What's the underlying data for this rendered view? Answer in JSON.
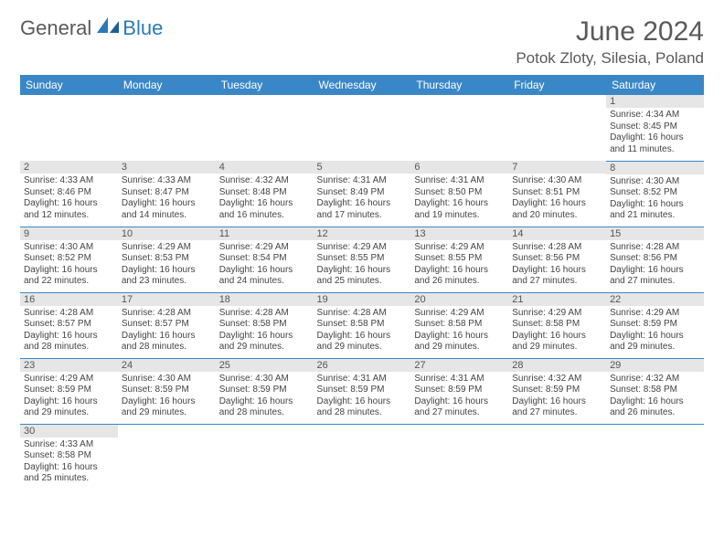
{
  "brand": {
    "part1": "General",
    "part2": "Blue"
  },
  "title": "June 2024",
  "location": "Potok Zloty, Silesia, Poland",
  "colors": {
    "header_bg": "#3a87c8",
    "header_text": "#ffffff",
    "day_bar_bg": "#e6e6e6",
    "border": "#3a87c8",
    "body_text": "#444444",
    "title_text": "#5a5a5a",
    "brand_accent": "#2a7ab9"
  },
  "weekdays": [
    "Sunday",
    "Monday",
    "Tuesday",
    "Wednesday",
    "Thursday",
    "Friday",
    "Saturday"
  ],
  "weeks": [
    [
      null,
      null,
      null,
      null,
      null,
      null,
      {
        "n": "1",
        "sr": "Sunrise: 4:34 AM",
        "ss": "Sunset: 8:45 PM",
        "d1": "Daylight: 16 hours",
        "d2": "and 11 minutes."
      }
    ],
    [
      {
        "n": "2",
        "sr": "Sunrise: 4:33 AM",
        "ss": "Sunset: 8:46 PM",
        "d1": "Daylight: 16 hours",
        "d2": "and 12 minutes."
      },
      {
        "n": "3",
        "sr": "Sunrise: 4:33 AM",
        "ss": "Sunset: 8:47 PM",
        "d1": "Daylight: 16 hours",
        "d2": "and 14 minutes."
      },
      {
        "n": "4",
        "sr": "Sunrise: 4:32 AM",
        "ss": "Sunset: 8:48 PM",
        "d1": "Daylight: 16 hours",
        "d2": "and 16 minutes."
      },
      {
        "n": "5",
        "sr": "Sunrise: 4:31 AM",
        "ss": "Sunset: 8:49 PM",
        "d1": "Daylight: 16 hours",
        "d2": "and 17 minutes."
      },
      {
        "n": "6",
        "sr": "Sunrise: 4:31 AM",
        "ss": "Sunset: 8:50 PM",
        "d1": "Daylight: 16 hours",
        "d2": "and 19 minutes."
      },
      {
        "n": "7",
        "sr": "Sunrise: 4:30 AM",
        "ss": "Sunset: 8:51 PM",
        "d1": "Daylight: 16 hours",
        "d2": "and 20 minutes."
      },
      {
        "n": "8",
        "sr": "Sunrise: 4:30 AM",
        "ss": "Sunset: 8:52 PM",
        "d1": "Daylight: 16 hours",
        "d2": "and 21 minutes."
      }
    ],
    [
      {
        "n": "9",
        "sr": "Sunrise: 4:30 AM",
        "ss": "Sunset: 8:52 PM",
        "d1": "Daylight: 16 hours",
        "d2": "and 22 minutes."
      },
      {
        "n": "10",
        "sr": "Sunrise: 4:29 AM",
        "ss": "Sunset: 8:53 PM",
        "d1": "Daylight: 16 hours",
        "d2": "and 23 minutes."
      },
      {
        "n": "11",
        "sr": "Sunrise: 4:29 AM",
        "ss": "Sunset: 8:54 PM",
        "d1": "Daylight: 16 hours",
        "d2": "and 24 minutes."
      },
      {
        "n": "12",
        "sr": "Sunrise: 4:29 AM",
        "ss": "Sunset: 8:55 PM",
        "d1": "Daylight: 16 hours",
        "d2": "and 25 minutes."
      },
      {
        "n": "13",
        "sr": "Sunrise: 4:29 AM",
        "ss": "Sunset: 8:55 PM",
        "d1": "Daylight: 16 hours",
        "d2": "and 26 minutes."
      },
      {
        "n": "14",
        "sr": "Sunrise: 4:28 AM",
        "ss": "Sunset: 8:56 PM",
        "d1": "Daylight: 16 hours",
        "d2": "and 27 minutes."
      },
      {
        "n": "15",
        "sr": "Sunrise: 4:28 AM",
        "ss": "Sunset: 8:56 PM",
        "d1": "Daylight: 16 hours",
        "d2": "and 27 minutes."
      }
    ],
    [
      {
        "n": "16",
        "sr": "Sunrise: 4:28 AM",
        "ss": "Sunset: 8:57 PM",
        "d1": "Daylight: 16 hours",
        "d2": "and 28 minutes."
      },
      {
        "n": "17",
        "sr": "Sunrise: 4:28 AM",
        "ss": "Sunset: 8:57 PM",
        "d1": "Daylight: 16 hours",
        "d2": "and 28 minutes."
      },
      {
        "n": "18",
        "sr": "Sunrise: 4:28 AM",
        "ss": "Sunset: 8:58 PM",
        "d1": "Daylight: 16 hours",
        "d2": "and 29 minutes."
      },
      {
        "n": "19",
        "sr": "Sunrise: 4:28 AM",
        "ss": "Sunset: 8:58 PM",
        "d1": "Daylight: 16 hours",
        "d2": "and 29 minutes."
      },
      {
        "n": "20",
        "sr": "Sunrise: 4:29 AM",
        "ss": "Sunset: 8:58 PM",
        "d1": "Daylight: 16 hours",
        "d2": "and 29 minutes."
      },
      {
        "n": "21",
        "sr": "Sunrise: 4:29 AM",
        "ss": "Sunset: 8:58 PM",
        "d1": "Daylight: 16 hours",
        "d2": "and 29 minutes."
      },
      {
        "n": "22",
        "sr": "Sunrise: 4:29 AM",
        "ss": "Sunset: 8:59 PM",
        "d1": "Daylight: 16 hours",
        "d2": "and 29 minutes."
      }
    ],
    [
      {
        "n": "23",
        "sr": "Sunrise: 4:29 AM",
        "ss": "Sunset: 8:59 PM",
        "d1": "Daylight: 16 hours",
        "d2": "and 29 minutes."
      },
      {
        "n": "24",
        "sr": "Sunrise: 4:30 AM",
        "ss": "Sunset: 8:59 PM",
        "d1": "Daylight: 16 hours",
        "d2": "and 29 minutes."
      },
      {
        "n": "25",
        "sr": "Sunrise: 4:30 AM",
        "ss": "Sunset: 8:59 PM",
        "d1": "Daylight: 16 hours",
        "d2": "and 28 minutes."
      },
      {
        "n": "26",
        "sr": "Sunrise: 4:31 AM",
        "ss": "Sunset: 8:59 PM",
        "d1": "Daylight: 16 hours",
        "d2": "and 28 minutes."
      },
      {
        "n": "27",
        "sr": "Sunrise: 4:31 AM",
        "ss": "Sunset: 8:59 PM",
        "d1": "Daylight: 16 hours",
        "d2": "and 27 minutes."
      },
      {
        "n": "28",
        "sr": "Sunrise: 4:32 AM",
        "ss": "Sunset: 8:59 PM",
        "d1": "Daylight: 16 hours",
        "d2": "and 27 minutes."
      },
      {
        "n": "29",
        "sr": "Sunrise: 4:32 AM",
        "ss": "Sunset: 8:58 PM",
        "d1": "Daylight: 16 hours",
        "d2": "and 26 minutes."
      }
    ],
    [
      {
        "n": "30",
        "sr": "Sunrise: 4:33 AM",
        "ss": "Sunset: 8:58 PM",
        "d1": "Daylight: 16 hours",
        "d2": "and 25 minutes."
      },
      null,
      null,
      null,
      null,
      null,
      null
    ]
  ]
}
